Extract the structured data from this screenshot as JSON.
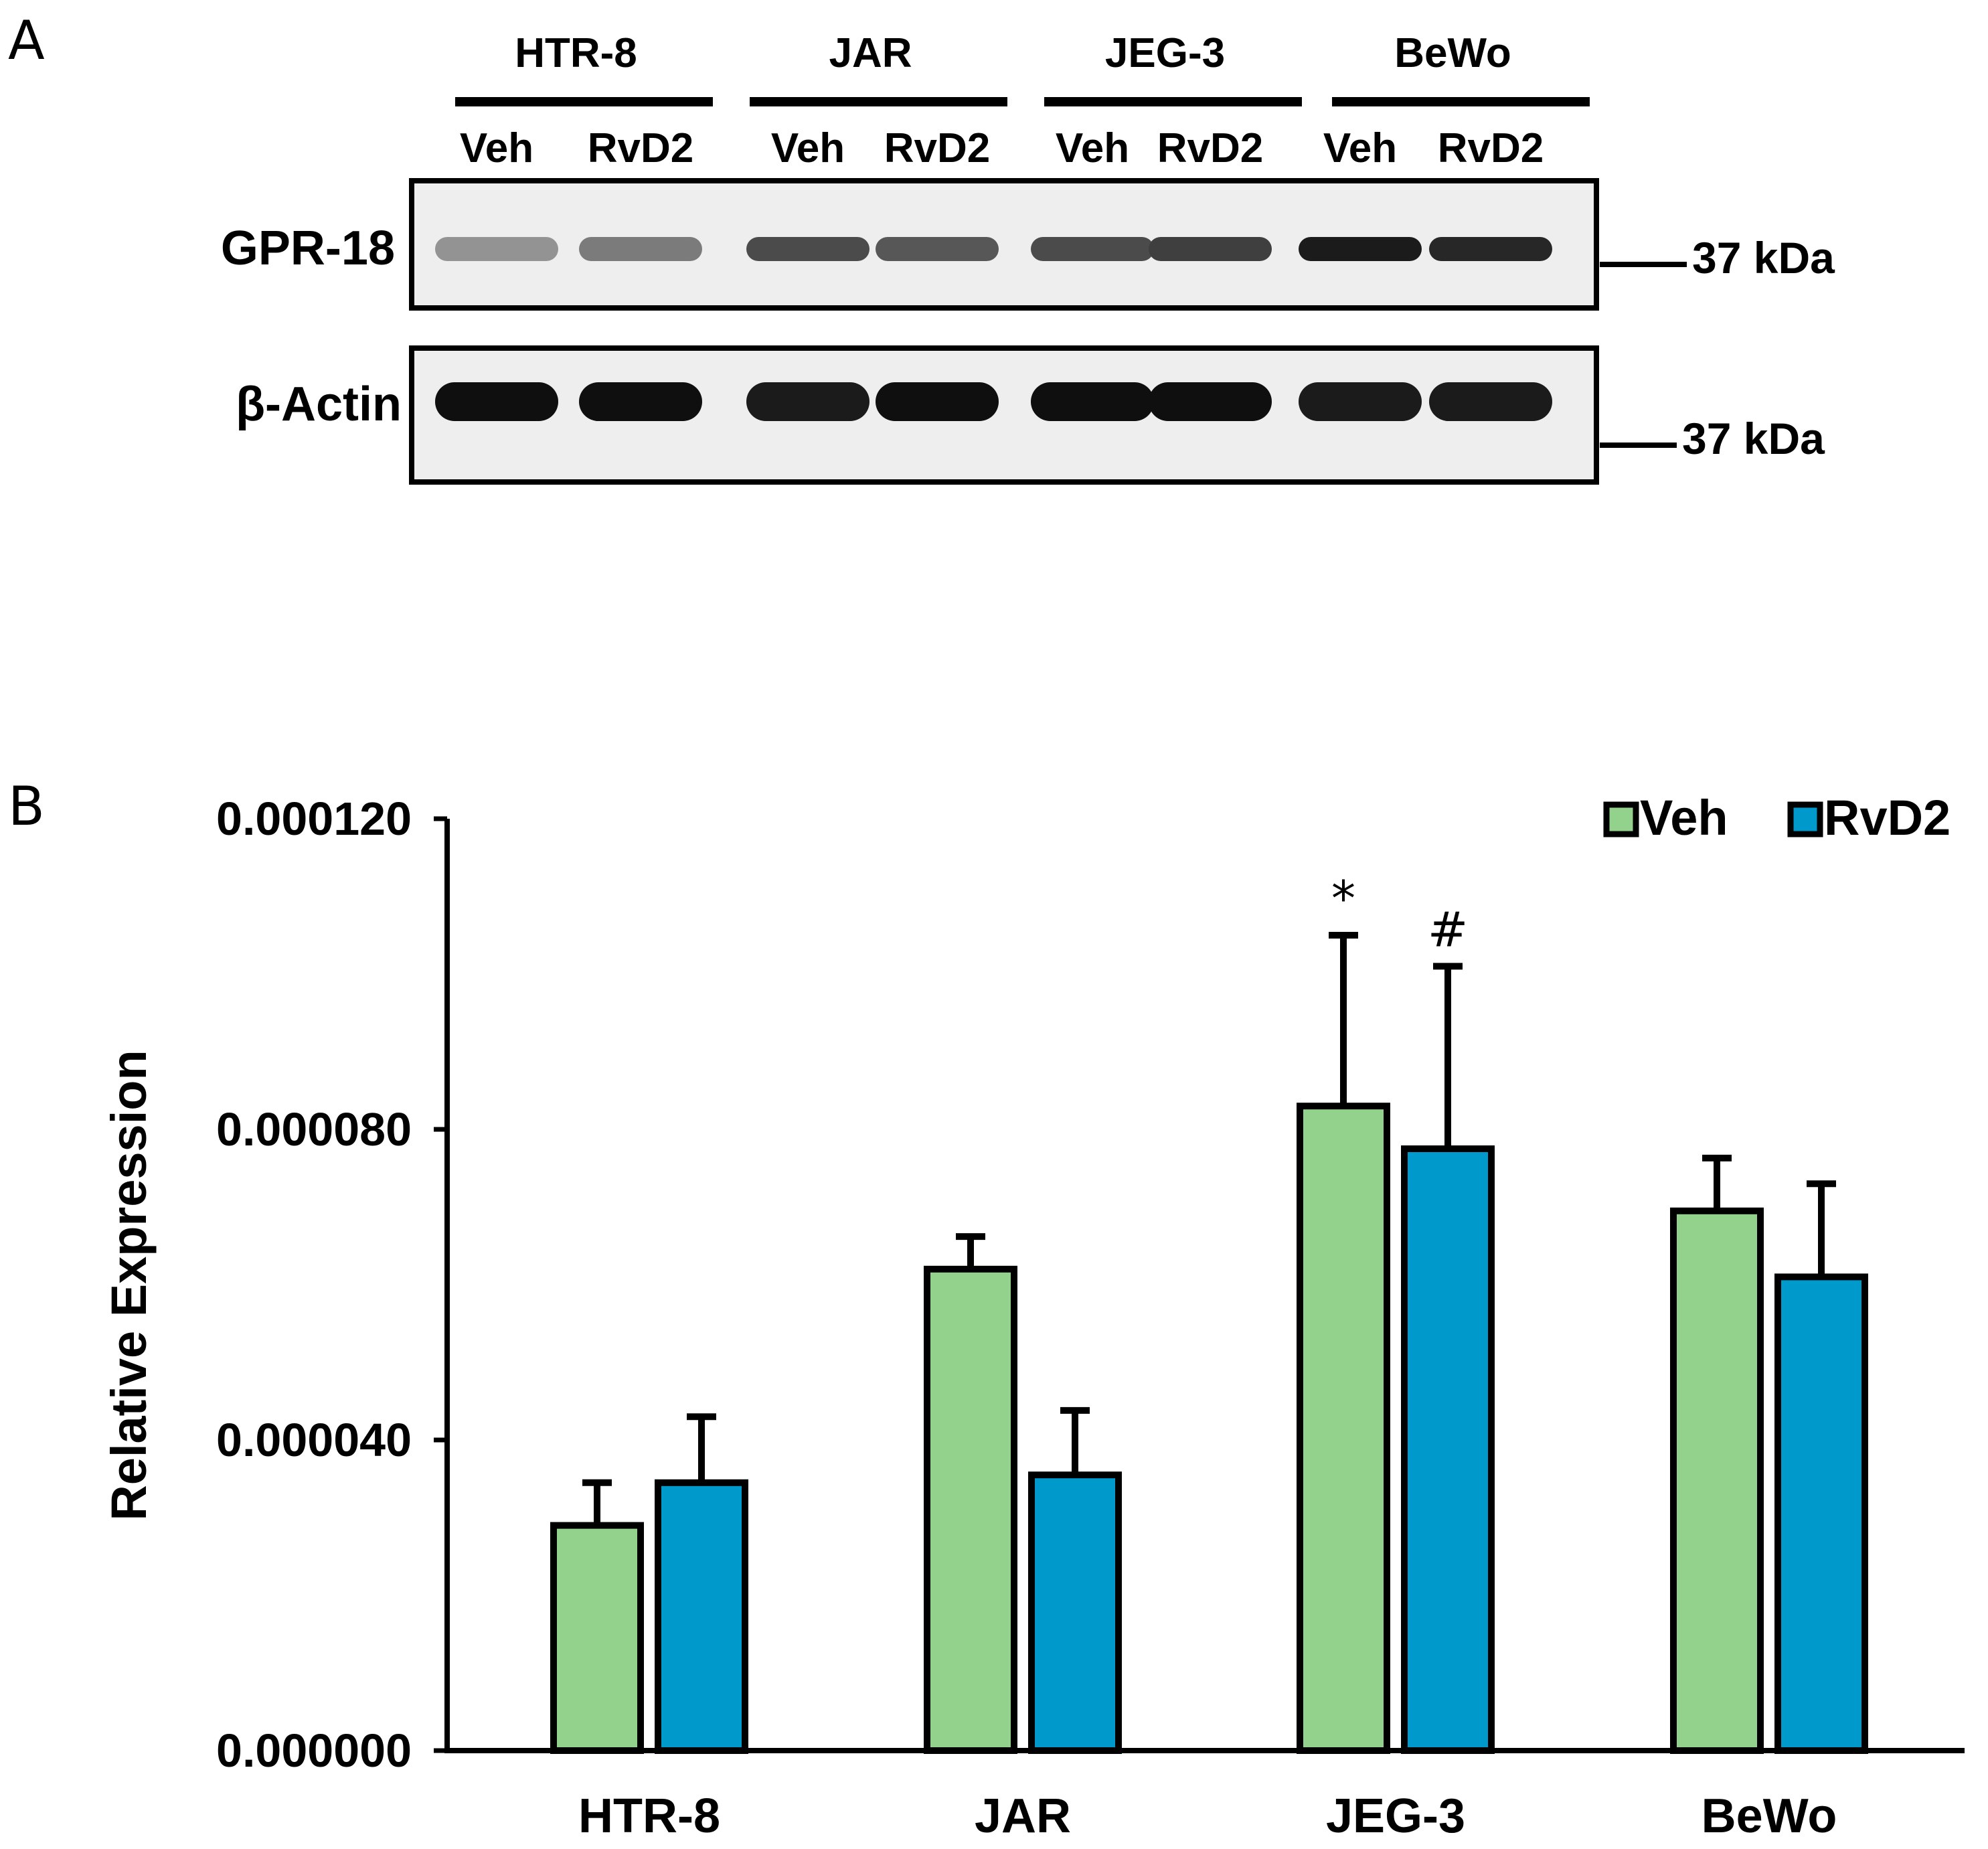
{
  "panel_a": {
    "letter": "A",
    "cell_lines": [
      "HTR-8",
      "JAR",
      "JEG-3",
      "BeWo"
    ],
    "lanes": [
      "Veh",
      "RvD2",
      "Veh",
      "RvD2",
      "Veh",
      "RvD2",
      "Veh",
      "RvD2"
    ],
    "blots": [
      {
        "protein": "GPR-18",
        "marker": "37 kDa",
        "band_intensity": [
          0.45,
          0.55,
          0.75,
          0.7,
          0.75,
          0.8,
          0.95,
          0.9
        ]
      },
      {
        "protein": "β-Actin",
        "marker": "37 kDa",
        "band_intensity": [
          1.0,
          1.0,
          0.95,
          1.0,
          1.0,
          1.0,
          0.95,
          0.95
        ]
      }
    ]
  },
  "panel_b": {
    "letter": "B"
  },
  "chart_data": {
    "type": "bar",
    "title": "",
    "xlabel": "",
    "ylabel": "Relative Expression",
    "categories": [
      "HTR-8",
      "JAR",
      "JEG-3",
      "BeWo"
    ],
    "ylim": [
      0,
      0.00012
    ],
    "yticks": [
      "0.000000",
      "0.000040",
      "0.000080",
      "0.000120"
    ],
    "ytick_values": [
      0,
      4e-05,
      8e-05,
      0.00012
    ],
    "legend_position": "top-right",
    "series": [
      {
        "name": "Veh",
        "color": "#93d28c",
        "values": [
          2.9e-05,
          6.2e-05,
          8.3e-05,
          6.95e-05
        ],
        "errors": [
          5.5e-06,
          4.2e-06,
          2.2e-05,
          6.8e-06
        ],
        "annotations": [
          "",
          "",
          "*",
          ""
        ]
      },
      {
        "name": "RvD2",
        "color": "#0099cc",
        "values": [
          3.45e-05,
          3.55e-05,
          7.75e-05,
          6.1e-05
        ],
        "errors": [
          8.5e-06,
          8.3e-06,
          2.35e-05,
          1.2e-05
        ],
        "annotations": [
          "",
          "",
          "#",
          ""
        ]
      }
    ]
  }
}
